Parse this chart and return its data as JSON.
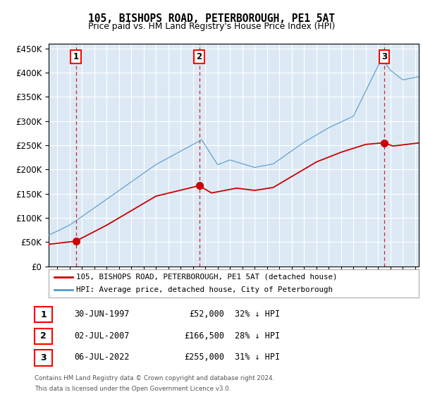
{
  "title": "105, BISHOPS ROAD, PETERBOROUGH, PE1 5AT",
  "subtitle": "Price paid vs. HM Land Registry's House Price Index (HPI)",
  "red_label": "105, BISHOPS ROAD, PETERBOROUGH, PE1 5AT (detached house)",
  "blue_label": "HPI: Average price, detached house, City of Peterborough",
  "footer1": "Contains HM Land Registry data © Crown copyright and database right 2024.",
  "footer2": "This data is licensed under the Open Government Licence v3.0.",
  "sales": [
    {
      "num": 1,
      "date_str": "30-JUN-1997",
      "price": 52000,
      "hpi_pct": "32% ↓ HPI",
      "year": 1997.5
    },
    {
      "num": 2,
      "date_str": "02-JUL-2007",
      "price": 166500,
      "hpi_pct": "28% ↓ HPI",
      "year": 2007.5
    },
    {
      "num": 3,
      "date_str": "06-JUL-2022",
      "price": 255000,
      "hpi_pct": "31% ↓ HPI",
      "year": 2022.5
    }
  ],
  "ylim": [
    0,
    460000
  ],
  "yticks": [
    0,
    50000,
    100000,
    150000,
    200000,
    250000,
    300000,
    350000,
    400000,
    450000
  ],
  "xlim_start": 1995.3,
  "xlim_end": 2025.3,
  "background_color": "#dce9f5",
  "red_color": "#cc0000",
  "blue_color": "#5599cc",
  "grid_color": "#ffffff"
}
